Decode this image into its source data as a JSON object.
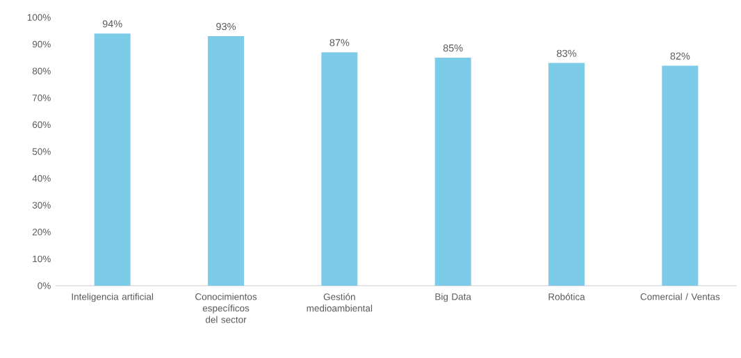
{
  "chart_data": {
    "type": "bar",
    "categories": [
      "Inteligencia artificial",
      "Conocimientos específicos del sector",
      "Gestión medioambiental",
      "Big Data",
      "Robótica",
      "Comercial / Ventas"
    ],
    "values": [
      94,
      93,
      87,
      85,
      83,
      82
    ],
    "value_labels": [
      "94%",
      "93%",
      "87%",
      "85%",
      "83%",
      "82%"
    ],
    "color": "#7ccbe8",
    "ylim": [
      0,
      100
    ],
    "yticks": [
      {
        "value": 0,
        "label": "0%"
      },
      {
        "value": 10,
        "label": "10%"
      },
      {
        "value": 20,
        "label": "20%"
      },
      {
        "value": 30,
        "label": "30%"
      },
      {
        "value": 40,
        "label": "40%"
      },
      {
        "value": 50,
        "label": "50%"
      },
      {
        "value": 60,
        "label": "60%"
      },
      {
        "value": 70,
        "label": "70%"
      },
      {
        "value": 80,
        "label": "80%"
      },
      {
        "value": 90,
        "label": "90%"
      },
      {
        "value": 100,
        "label": "100%"
      }
    ]
  }
}
